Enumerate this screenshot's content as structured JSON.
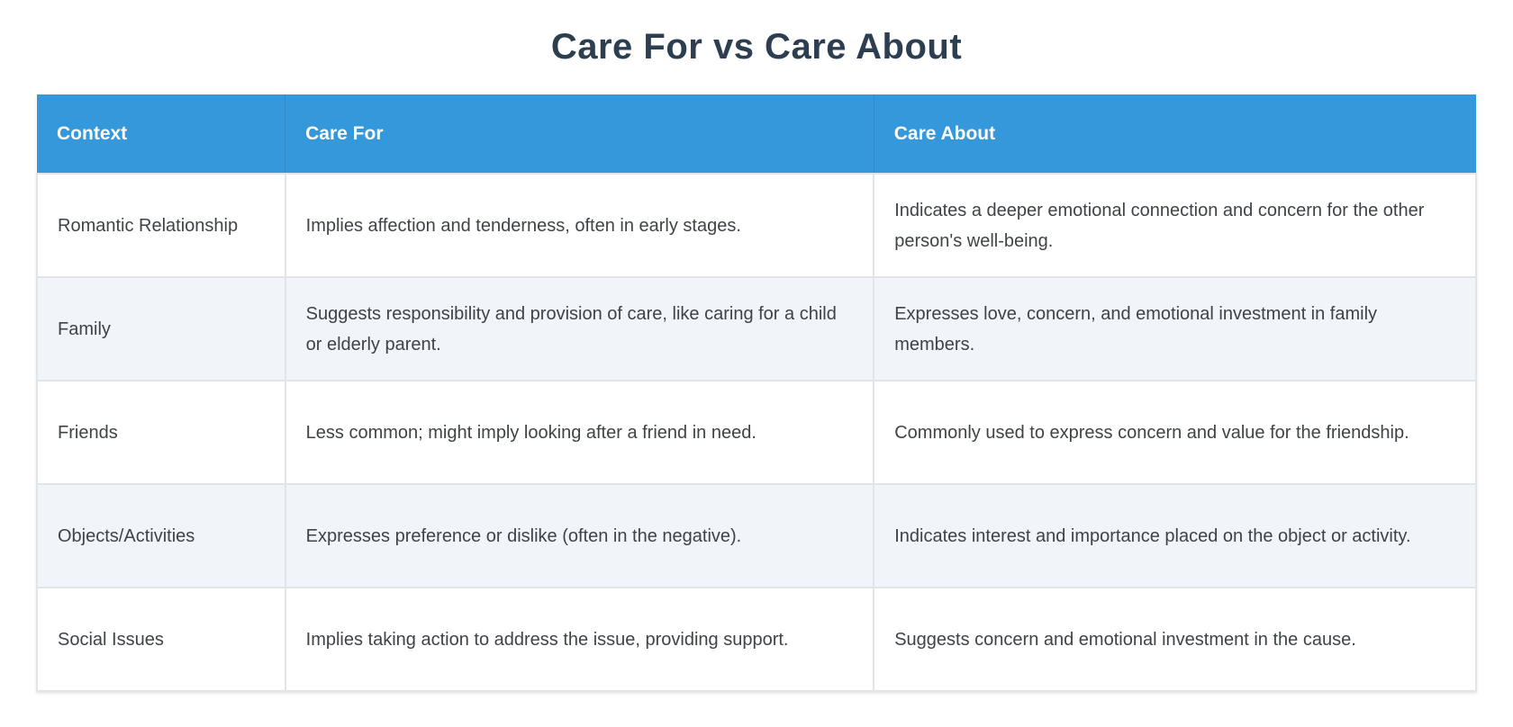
{
  "page": {
    "title": "Care For vs Care About"
  },
  "colors": {
    "header_bg": "#3498db",
    "header_text": "#ffffff",
    "title_text": "#2c3e50",
    "body_text": "#3f4348",
    "row_alt_bg": "#f1f4f9",
    "border": "#e1e4e8"
  },
  "table": {
    "columns": [
      {
        "label": "Context"
      },
      {
        "label": "Care For"
      },
      {
        "label": "Care About"
      }
    ],
    "rows": [
      {
        "context": "Romantic Relationship",
        "care_for": "Implies affection and tenderness, often in early stages.",
        "care_about": "Indicates a deeper emotional connection and concern for the other person's well-being."
      },
      {
        "context": "Family",
        "care_for": "Suggests responsibility and provision of care, like caring for a child or elderly parent.",
        "care_about": "Expresses love, concern, and emotional investment in family members."
      },
      {
        "context": "Friends",
        "care_for": "Less common; might imply looking after a friend in need.",
        "care_about": "Commonly used to express concern and value for the friendship."
      },
      {
        "context": "Objects/Activities",
        "care_for": "Expresses preference or dislike (often in the negative).",
        "care_about": "Indicates interest and importance placed on the object or activity."
      },
      {
        "context": "Social Issues",
        "care_for": "Implies taking action to address the issue, providing support.",
        "care_about": "Suggests concern and emotional investment in the cause."
      }
    ]
  }
}
